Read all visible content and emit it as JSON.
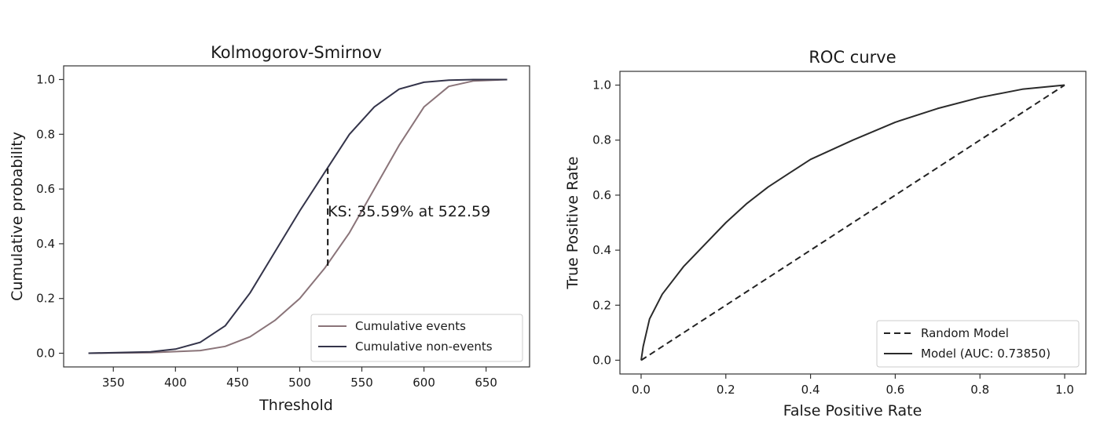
{
  "colors": {
    "events": "#8a7479",
    "non_events": "#34344a",
    "model": "#2b2b2b",
    "random": "#222222",
    "axes": "#333333"
  },
  "chart_data": [
    {
      "type": "line",
      "title": "Kolmogorov-Smirnov",
      "xlabel": "Threshold",
      "ylabel": "Cumulative probability",
      "xlim": [
        310,
        685
      ],
      "ylim": [
        -0.05,
        1.05
      ],
      "xticks": [
        350,
        400,
        450,
        500,
        550,
        600,
        650
      ],
      "yticks": [
        0.0,
        0.2,
        0.4,
        0.6,
        0.8,
        1.0
      ],
      "xtick_labels": [
        "350",
        "400",
        "450",
        "500",
        "550",
        "600",
        "650"
      ],
      "ytick_labels": [
        "0.0",
        "0.2",
        "0.4",
        "0.6",
        "0.8",
        "1.0"
      ],
      "legend_position": "lower-right",
      "grid": false,
      "series": [
        {
          "name": "Cumulative events",
          "color_key": "events",
          "x": [
            330,
            380,
            420,
            440,
            460,
            480,
            500,
            520,
            540,
            560,
            580,
            600,
            620,
            640,
            667
          ],
          "y": [
            0.0,
            0.002,
            0.01,
            0.025,
            0.06,
            0.12,
            0.2,
            0.31,
            0.44,
            0.6,
            0.76,
            0.9,
            0.975,
            0.995,
            1.0
          ]
        },
        {
          "name": "Cumulative non-events",
          "color_key": "non_events",
          "x": [
            330,
            380,
            400,
            420,
            440,
            460,
            480,
            500,
            520,
            540,
            560,
            580,
            600,
            620,
            640,
            667
          ],
          "y": [
            0.0,
            0.005,
            0.015,
            0.04,
            0.1,
            0.22,
            0.37,
            0.52,
            0.66,
            0.8,
            0.9,
            0.965,
            0.99,
            0.998,
            1.0,
            1.0
          ]
        }
      ],
      "ks_line": {
        "x": 522.59,
        "y_low": 0.32,
        "y_high": 0.675
      },
      "annotation": {
        "text": "KS: 35.59% at 522.59",
        "x": 522.59,
        "y": 0.52
      }
    },
    {
      "type": "line",
      "title": "ROC curve",
      "xlabel": "False Positive Rate",
      "ylabel": "True Positive Rate",
      "xlim": [
        -0.05,
        1.05
      ],
      "ylim": [
        -0.05,
        1.05
      ],
      "xticks": [
        0.0,
        0.2,
        0.4,
        0.6,
        0.8,
        1.0
      ],
      "yticks": [
        0.0,
        0.2,
        0.4,
        0.6,
        0.8,
        1.0
      ],
      "xtick_labels": [
        "0.0",
        "0.2",
        "0.4",
        "0.6",
        "0.8",
        "1.0"
      ],
      "ytick_labels": [
        "0.0",
        "0.2",
        "0.4",
        "0.6",
        "0.8",
        "1.0"
      ],
      "legend_position": "lower-right",
      "grid": false,
      "series": [
        {
          "name": "Random Model",
          "color_key": "random",
          "dashed": true,
          "x": [
            0.0,
            1.0
          ],
          "y": [
            0.0,
            1.0
          ]
        },
        {
          "name": "Model (AUC: 0.73850)",
          "color_key": "model",
          "dashed": false,
          "x": [
            0.0,
            0.005,
            0.02,
            0.05,
            0.1,
            0.15,
            0.2,
            0.25,
            0.3,
            0.35,
            0.4,
            0.5,
            0.6,
            0.7,
            0.8,
            0.9,
            1.0
          ],
          "y": [
            0.0,
            0.05,
            0.15,
            0.24,
            0.34,
            0.42,
            0.5,
            0.57,
            0.63,
            0.68,
            0.73,
            0.8,
            0.865,
            0.915,
            0.955,
            0.985,
            1.0
          ]
        }
      ]
    }
  ]
}
